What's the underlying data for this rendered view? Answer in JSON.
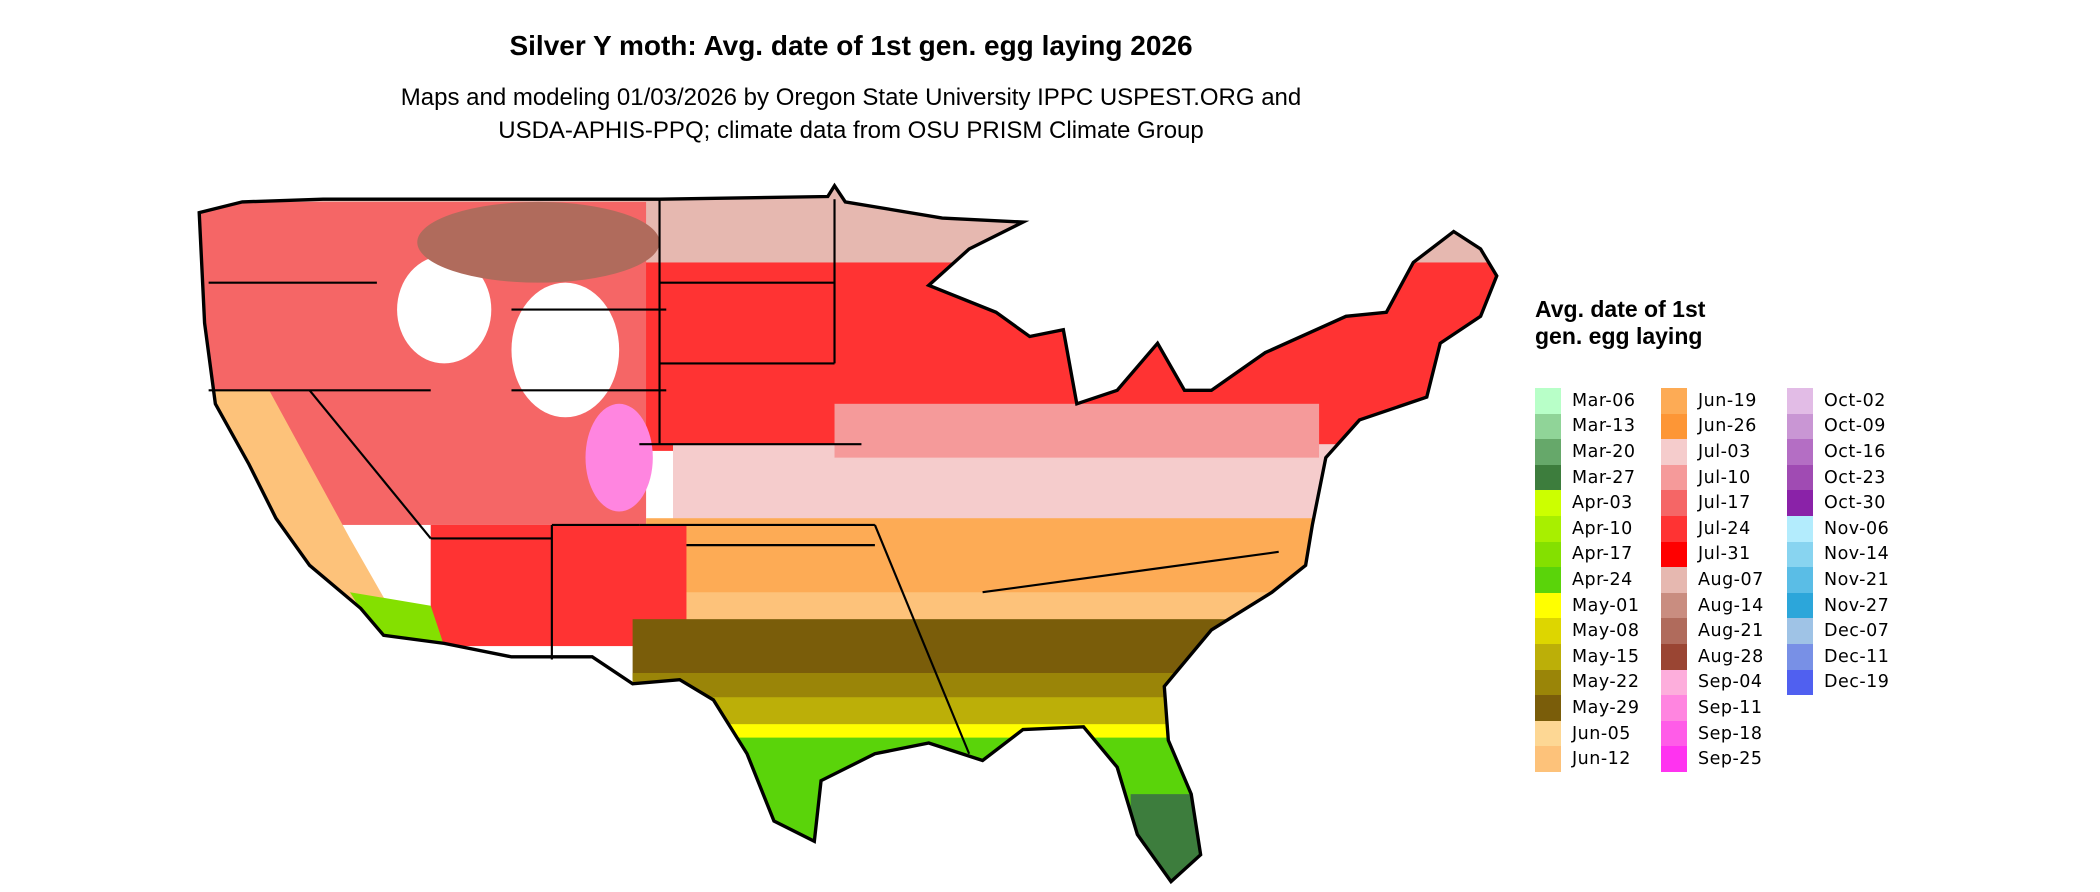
{
  "title": "Silver Y moth: Avg. date of 1st gen. egg laying 2026",
  "subtitle": [
    "Maps and modeling 01/03/2026 by Oregon State University IPPC USPEST.ORG and",
    "USDA-APHIS-PPQ; climate data from OSU PRISM Climate Group"
  ],
  "legend": {
    "title": "Avg. date of 1st gen. egg laying",
    "columns": [
      [
        {
          "label": "Mar-06",
          "color": "#b8ffc8"
        },
        {
          "label": "Mar-13",
          "color": "#90d498"
        },
        {
          "label": "Mar-20",
          "color": "#66a86a"
        },
        {
          "label": "Mar-27",
          "color": "#3d7d3d"
        },
        {
          "label": "Apr-03",
          "color": "#ccff00"
        },
        {
          "label": "Apr-10",
          "color": "#a8ef00"
        },
        {
          "label": "Apr-17",
          "color": "#84e000"
        },
        {
          "label": "Apr-24",
          "color": "#5ad40a"
        },
        {
          "label": "May-01",
          "color": "#ffff00"
        },
        {
          "label": "May-08",
          "color": "#ddd600"
        },
        {
          "label": "May-15",
          "color": "#bcaf08"
        },
        {
          "label": "May-22",
          "color": "#9a8508"
        },
        {
          "label": "May-29",
          "color": "#7a5d0a"
        },
        {
          "label": "Jun-05",
          "color": "#fdd794"
        },
        {
          "label": "Jun-12",
          "color": "#fdc27a"
        }
      ],
      [
        {
          "label": "Jun-19",
          "color": "#fdab55"
        },
        {
          "label": "Jun-26",
          "color": "#fd9636"
        },
        {
          "label": "Jul-03",
          "color": "#f5cccc"
        },
        {
          "label": "Jul-10",
          "color": "#f59a9a"
        },
        {
          "label": "Jul-17",
          "color": "#f56666"
        },
        {
          "label": "Jul-24",
          "color": "#ff3333"
        },
        {
          "label": "Jul-31",
          "color": "#ff0000"
        },
        {
          "label": "Aug-07",
          "color": "#e6b8b0"
        },
        {
          "label": "Aug-14",
          "color": "#c98d80"
        },
        {
          "label": "Aug-21",
          "color": "#b06b5c"
        },
        {
          "label": "Aug-28",
          "color": "#9a4533"
        },
        {
          "label": "Sep-04",
          "color": "#fdaedc"
        },
        {
          "label": "Sep-11",
          "color": "#ff85e0"
        },
        {
          "label": "Sep-18",
          "color": "#ff5ce8"
        },
        {
          "label": "Sep-25",
          "color": "#ff33f0"
        }
      ],
      [
        {
          "label": "Oct-02",
          "color": "#e2bce6"
        },
        {
          "label": "Oct-09",
          "color": "#c996d4"
        },
        {
          "label": "Oct-16",
          "color": "#b46ec4"
        },
        {
          "label": "Oct-23",
          "color": "#a04bb3"
        },
        {
          "label": "Oct-30",
          "color": "#8a22a8"
        },
        {
          "label": "Nov-06",
          "color": "#b3ecfd"
        },
        {
          "label": "Nov-14",
          "color": "#88d4f0"
        },
        {
          "label": "Nov-21",
          "color": "#5abde6"
        },
        {
          "label": "Nov-27",
          "color": "#2ca6da"
        },
        {
          "label": "Dec-07",
          "color": "#9fc3e6"
        },
        {
          "label": "Dec-11",
          "color": "#7890e6"
        },
        {
          "label": "Dec-19",
          "color": "#5060f0"
        }
      ]
    ]
  }
}
